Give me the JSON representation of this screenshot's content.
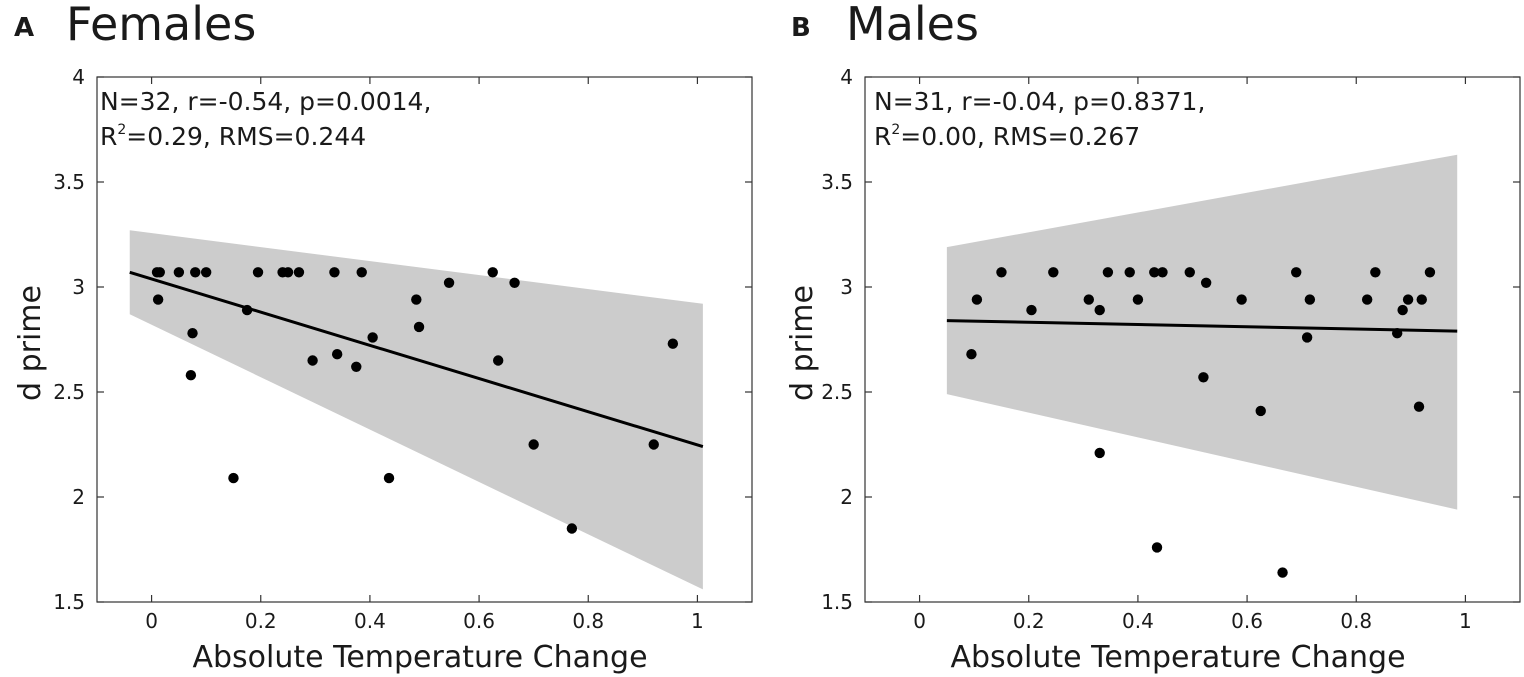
{
  "chart_data": [
    {
      "type": "scatter",
      "panel_letter": "A",
      "title": "Females",
      "xlabel": "Absolute Temperature Change",
      "ylabel": "d prime",
      "xlim": [
        -0.1,
        1.1
      ],
      "ylim": [
        1.5,
        4
      ],
      "xticks": [
        "0",
        "0.2",
        "0.4",
        "0.6",
        "0.8",
        "1"
      ],
      "xtick_values": [
        0,
        0.2,
        0.4,
        0.6,
        0.8,
        1
      ],
      "yticks": [
        "1.5",
        "2",
        "2.5",
        "3",
        "3.5",
        "4"
      ],
      "ytick_values": [
        1.5,
        2,
        2.5,
        3,
        3.5,
        4
      ],
      "annotation": {
        "line1": "N=32, r=-0.54, p=0.0014,",
        "line2_pre": "R",
        "line2_sup": "2",
        "line2_post": "=0.29, RMS=0.244"
      },
      "fit": {
        "x0": -0.04,
        "y0": 3.07,
        "x1": 1.01,
        "y1": 2.24
      },
      "band": {
        "x0": -0.04,
        "upper0": 3.27,
        "lower0": 2.87,
        "x1": 1.01,
        "upper1": 2.92,
        "lower1": 1.56
      },
      "points": [
        {
          "x": 0.01,
          "y": 3.07
        },
        {
          "x": 0.015,
          "y": 3.07
        },
        {
          "x": 0.012,
          "y": 2.94
        },
        {
          "x": 0.05,
          "y": 3.07
        },
        {
          "x": 0.08,
          "y": 3.07
        },
        {
          "x": 0.1,
          "y": 3.07
        },
        {
          "x": 0.075,
          "y": 2.78
        },
        {
          "x": 0.072,
          "y": 2.58
        },
        {
          "x": 0.15,
          "y": 2.09
        },
        {
          "x": 0.175,
          "y": 2.89
        },
        {
          "x": 0.195,
          "y": 3.07
        },
        {
          "x": 0.24,
          "y": 3.07
        },
        {
          "x": 0.25,
          "y": 3.07
        },
        {
          "x": 0.27,
          "y": 3.07
        },
        {
          "x": 0.295,
          "y": 2.65
        },
        {
          "x": 0.335,
          "y": 3.07
        },
        {
          "x": 0.34,
          "y": 2.68
        },
        {
          "x": 0.375,
          "y": 2.62
        },
        {
          "x": 0.385,
          "y": 3.07
        },
        {
          "x": 0.405,
          "y": 2.76
        },
        {
          "x": 0.435,
          "y": 2.09
        },
        {
          "x": 0.485,
          "y": 2.94
        },
        {
          "x": 0.49,
          "y": 2.81
        },
        {
          "x": 0.545,
          "y": 3.02
        },
        {
          "x": 0.625,
          "y": 3.07
        },
        {
          "x": 0.635,
          "y": 2.65
        },
        {
          "x": 0.665,
          "y": 3.02
        },
        {
          "x": 0.7,
          "y": 2.25
        },
        {
          "x": 0.77,
          "y": 1.85
        },
        {
          "x": 0.92,
          "y": 2.25
        },
        {
          "x": 0.955,
          "y": 2.73
        }
      ]
    },
    {
      "type": "scatter",
      "panel_letter": "B",
      "title": "Males",
      "xlabel": "Absolute Temperature Change",
      "ylabel": "d prime",
      "xlim": [
        -0.1,
        1.1
      ],
      "ylim": [
        1.5,
        4
      ],
      "xticks": [
        "0",
        "0.2",
        "0.4",
        "0.6",
        "0.8",
        "1"
      ],
      "xtick_values": [
        0,
        0.2,
        0.4,
        0.6,
        0.8,
        1
      ],
      "yticks": [
        "1.5",
        "2",
        "2.5",
        "3",
        "3.5",
        "4"
      ],
      "ytick_values": [
        1.5,
        2,
        2.5,
        3,
        3.5,
        4
      ],
      "annotation": {
        "line1": "N=31, r=-0.04, p=0.8371,",
        "line2_pre": "R",
        "line2_sup": "2",
        "line2_post": "=0.00, RMS=0.267"
      },
      "fit": {
        "x0": 0.05,
        "y0": 2.84,
        "x1": 0.985,
        "y1": 2.79
      },
      "band": {
        "x0": 0.05,
        "upper0": 3.19,
        "lower0": 2.49,
        "x1": 0.985,
        "upper1": 3.63,
        "lower1": 1.94
      },
      "points": [
        {
          "x": 0.095,
          "y": 2.68
        },
        {
          "x": 0.105,
          "y": 2.94
        },
        {
          "x": 0.15,
          "y": 3.07
        },
        {
          "x": 0.205,
          "y": 2.89
        },
        {
          "x": 0.245,
          "y": 3.07
        },
        {
          "x": 0.31,
          "y": 2.94
        },
        {
          "x": 0.33,
          "y": 2.89
        },
        {
          "x": 0.33,
          "y": 2.21
        },
        {
          "x": 0.345,
          "y": 3.07
        },
        {
          "x": 0.385,
          "y": 3.07
        },
        {
          "x": 0.4,
          "y": 2.94
        },
        {
          "x": 0.43,
          "y": 3.07
        },
        {
          "x": 0.445,
          "y": 3.07
        },
        {
          "x": 0.435,
          "y": 1.76
        },
        {
          "x": 0.495,
          "y": 3.07
        },
        {
          "x": 0.52,
          "y": 2.57
        },
        {
          "x": 0.525,
          "y": 3.02
        },
        {
          "x": 0.59,
          "y": 2.94
        },
        {
          "x": 0.625,
          "y": 2.41
        },
        {
          "x": 0.665,
          "y": 1.64
        },
        {
          "x": 0.69,
          "y": 3.07
        },
        {
          "x": 0.71,
          "y": 2.76
        },
        {
          "x": 0.715,
          "y": 2.94
        },
        {
          "x": 0.82,
          "y": 2.94
        },
        {
          "x": 0.835,
          "y": 3.07
        },
        {
          "x": 0.875,
          "y": 2.78
        },
        {
          "x": 0.885,
          "y": 2.89
        },
        {
          "x": 0.895,
          "y": 2.94
        },
        {
          "x": 0.915,
          "y": 2.43
        },
        {
          "x": 0.92,
          "y": 2.94
        },
        {
          "x": 0.935,
          "y": 3.07
        }
      ]
    }
  ]
}
